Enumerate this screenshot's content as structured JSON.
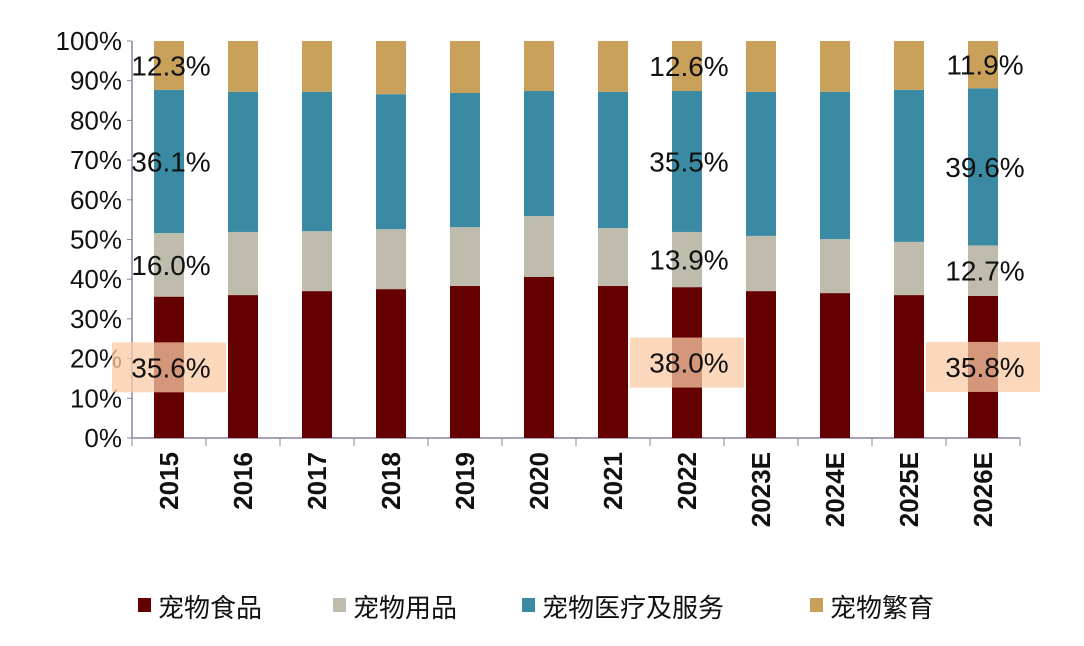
{
  "chart_data": {
    "type": "bar",
    "stacked": true,
    "percent": true,
    "categories": [
      "2015",
      "2016",
      "2017",
      "2018",
      "2019",
      "2020",
      "2021",
      "2022",
      "2023E",
      "2024E",
      "2025E",
      "2026E"
    ],
    "series": [
      {
        "name": "宠物食品",
        "color": "#640000",
        "values": [
          35.6,
          36.0,
          37.0,
          37.5,
          38.3,
          40.6,
          38.3,
          38.0,
          37.0,
          36.5,
          36.0,
          35.8
        ]
      },
      {
        "name": "宠物用品",
        "color": "#bfbcae",
        "values": [
          16.0,
          15.9,
          15.1,
          15.1,
          14.8,
          15.3,
          14.6,
          13.9,
          13.9,
          13.6,
          13.4,
          12.7
        ]
      },
      {
        "name": "宠物医疗及服务",
        "color": "#3a8aa3",
        "values": [
          36.1,
          35.3,
          35.1,
          34.0,
          33.8,
          31.5,
          34.3,
          35.5,
          36.3,
          37.1,
          38.3,
          39.6
        ]
      },
      {
        "name": "宠物繁育",
        "color": "#c9a05a",
        "values": [
          12.3,
          12.8,
          12.8,
          13.4,
          13.1,
          12.6,
          12.8,
          12.6,
          12.8,
          12.8,
          12.3,
          11.9
        ]
      }
    ],
    "yticks": [
      "0%",
      "10%",
      "20%",
      "30%",
      "40%",
      "50%",
      "60%",
      "70%",
      "80%",
      "90%",
      "100%"
    ],
    "ylim": [
      0,
      100
    ],
    "legend": "bottom",
    "grid": false,
    "data_labels": [
      {
        "category": "2015",
        "labels": [
          "35.6%",
          "16.0%",
          "36.1%",
          "12.3%"
        ]
      },
      {
        "category": "2022",
        "labels": [
          "38.0%",
          "13.9%",
          "35.5%",
          "12.6%"
        ]
      },
      {
        "category": "2026E",
        "labels": [
          "35.8%",
          "12.7%",
          "39.6%",
          "11.9%"
        ]
      }
    ],
    "highlight_color": "#f9c9a6"
  }
}
